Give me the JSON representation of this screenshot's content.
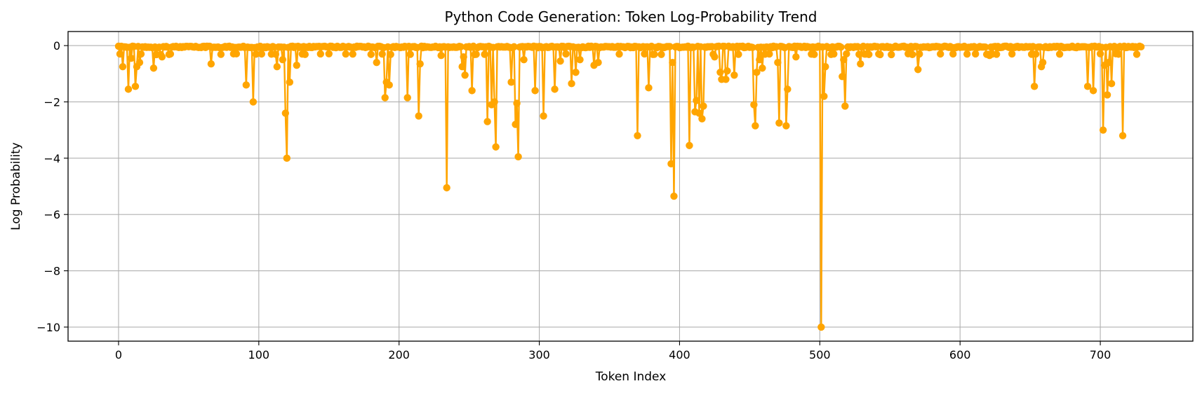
{
  "chart_data": {
    "type": "line",
    "title": "Python Code Generation: Token Log-Probability Trend",
    "xlabel": "Token Index",
    "ylabel": "Log Probability",
    "xlim": [
      -36,
      766
    ],
    "ylim": [
      -10.5,
      0.5
    ],
    "xticks": [
      0,
      100,
      200,
      300,
      400,
      500,
      600,
      700
    ],
    "yticks": [
      0,
      -2,
      -4,
      -6,
      -8,
      -10
    ],
    "xtick_labels": [
      "0",
      "100",
      "200",
      "300",
      "400",
      "500",
      "600",
      "700"
    ],
    "ytick_labels": [
      "0",
      "−2",
      "−4",
      "−6",
      "−8",
      "−10"
    ],
    "grid": true,
    "marker": "circle",
    "color": "#FFA500",
    "n_points": 730,
    "baseline_value": -0.02,
    "notable_points": [
      {
        "x": 3,
        "y": -0.75
      },
      {
        "x": 7,
        "y": -1.55
      },
      {
        "x": 9,
        "y": -0.45
      },
      {
        "x": 12,
        "y": -1.45
      },
      {
        "x": 13,
        "y": -0.75
      },
      {
        "x": 15,
        "y": -0.6
      },
      {
        "x": 25,
        "y": -0.8
      },
      {
        "x": 31,
        "y": -0.4
      },
      {
        "x": 66,
        "y": -0.65
      },
      {
        "x": 91,
        "y": -1.4
      },
      {
        "x": 96,
        "y": -2.0
      },
      {
        "x": 113,
        "y": -0.75
      },
      {
        "x": 117,
        "y": -0.5
      },
      {
        "x": 119,
        "y": -2.4
      },
      {
        "x": 120,
        "y": -4.0
      },
      {
        "x": 122,
        "y": -1.3
      },
      {
        "x": 127,
        "y": -0.7
      },
      {
        "x": 131,
        "y": -0.3
      },
      {
        "x": 167,
        "y": -0.3
      },
      {
        "x": 184,
        "y": -0.6
      },
      {
        "x": 188,
        "y": -0.3
      },
      {
        "x": 190,
        "y": -1.85
      },
      {
        "x": 191,
        "y": -1.3
      },
      {
        "x": 193,
        "y": -1.4
      },
      {
        "x": 206,
        "y": -1.85
      },
      {
        "x": 214,
        "y": -2.5
      },
      {
        "x": 215,
        "y": -0.65
      },
      {
        "x": 230,
        "y": -0.35
      },
      {
        "x": 234,
        "y": -5.05
      },
      {
        "x": 245,
        "y": -0.75
      },
      {
        "x": 246,
        "y": -0.4
      },
      {
        "x": 247,
        "y": -1.05
      },
      {
        "x": 252,
        "y": -1.6
      },
      {
        "x": 263,
        "y": -2.7
      },
      {
        "x": 266,
        "y": -2.1
      },
      {
        "x": 268,
        "y": -2.0
      },
      {
        "x": 269,
        "y": -3.6
      },
      {
        "x": 280,
        "y": -1.3
      },
      {
        "x": 283,
        "y": -2.8
      },
      {
        "x": 284,
        "y": -2.05
      },
      {
        "x": 285,
        "y": -3.95
      },
      {
        "x": 289,
        "y": -0.5
      },
      {
        "x": 297,
        "y": -1.6
      },
      {
        "x": 303,
        "y": -2.5
      },
      {
        "x": 311,
        "y": -1.55
      },
      {
        "x": 315,
        "y": -0.55
      },
      {
        "x": 323,
        "y": -1.35
      },
      {
        "x": 326,
        "y": -0.95
      },
      {
        "x": 329,
        "y": -0.5
      },
      {
        "x": 339,
        "y": -0.7
      },
      {
        "x": 342,
        "y": -0.6
      },
      {
        "x": 357,
        "y": -0.3
      },
      {
        "x": 370,
        "y": -3.2
      },
      {
        "x": 378,
        "y": -1.5
      },
      {
        "x": 394,
        "y": -4.2
      },
      {
        "x": 395,
        "y": -0.6
      },
      {
        "x": 396,
        "y": -5.35
      },
      {
        "x": 407,
        "y": -3.55
      },
      {
        "x": 411,
        "y": -2.35
      },
      {
        "x": 412,
        "y": -1.95
      },
      {
        "x": 414,
        "y": -2.4
      },
      {
        "x": 416,
        "y": -2.6
      },
      {
        "x": 417,
        "y": -2.15
      },
      {
        "x": 425,
        "y": -0.4
      },
      {
        "x": 429,
        "y": -0.95
      },
      {
        "x": 430,
        "y": -1.2
      },
      {
        "x": 433,
        "y": -1.2
      },
      {
        "x": 434,
        "y": -0.9
      },
      {
        "x": 439,
        "y": -1.05
      },
      {
        "x": 453,
        "y": -2.1
      },
      {
        "x": 454,
        "y": -2.85
      },
      {
        "x": 455,
        "y": -0.95
      },
      {
        "x": 457,
        "y": -0.5
      },
      {
        "x": 459,
        "y": -0.8
      },
      {
        "x": 470,
        "y": -0.6
      },
      {
        "x": 471,
        "y": -2.75
      },
      {
        "x": 476,
        "y": -2.85
      },
      {
        "x": 477,
        "y": -1.55
      },
      {
        "x": 483,
        "y": -0.4
      },
      {
        "x": 501,
        "y": -10.0
      },
      {
        "x": 503,
        "y": -1.8
      },
      {
        "x": 504,
        "y": -0.75
      },
      {
        "x": 516,
        "y": -1.1
      },
      {
        "x": 517,
        "y": -0.5
      },
      {
        "x": 518,
        "y": -2.15
      },
      {
        "x": 529,
        "y": -0.65
      },
      {
        "x": 570,
        "y": -0.85
      },
      {
        "x": 605,
        "y": -0.3
      },
      {
        "x": 621,
        "y": -0.35
      },
      {
        "x": 653,
        "y": -1.45
      },
      {
        "x": 658,
        "y": -0.75
      },
      {
        "x": 659,
        "y": -0.6
      },
      {
        "x": 691,
        "y": -1.45
      },
      {
        "x": 695,
        "y": -1.6
      },
      {
        "x": 702,
        "y": -3.0
      },
      {
        "x": 703,
        "y": -0.7
      },
      {
        "x": 705,
        "y": -1.75
      },
      {
        "x": 706,
        "y": -0.6
      },
      {
        "x": 708,
        "y": -1.35
      },
      {
        "x": 716,
        "y": -3.2
      },
      {
        "x": 728,
        "y": -0.02
      }
    ]
  }
}
